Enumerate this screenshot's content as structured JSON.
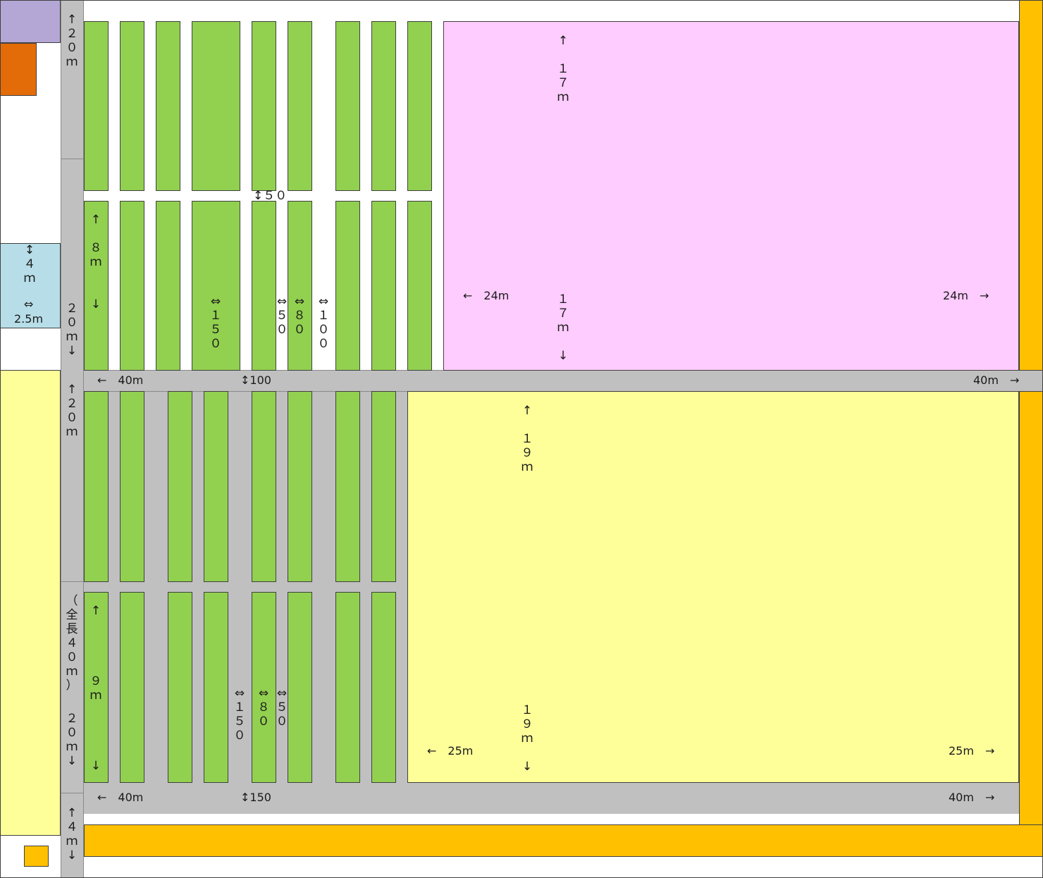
{
  "colors": {
    "bed": "#92d050",
    "aisle": "#c0c0c0",
    "pink_area": "#ffccff",
    "yellow_area": "#ffff99",
    "orange_strip": "#ffc000",
    "purple_block": "#b4a7d6",
    "dark_orange_block": "#e36c09",
    "light_blue_block": "#b7dee8"
  },
  "left_labels": {
    "upper_top": "↑\n２\n０\nｍ",
    "upper_bottom": "２\n０\nｍ\n↓",
    "lower_top": "↑\n２\n０\nｍ",
    "lower_total": "（\n全\n長\n４\n０\nｍ\n）",
    "lower_bottom": "２\n０\nｍ\n↓",
    "bottom_4m": "↑\n４\nｍ\n↓"
  },
  "blue_box": {
    "v_label": "↕\n４\nｍ",
    "h_arrow": "⇔",
    "h_value": "2.5m"
  },
  "upper_block": {
    "bed_height": "↑\n\n８\nｍ\n\n\n↓",
    "gap_150": "↕５０",
    "w150": "⇔\n１\n５\n０",
    "w50": "⇔\n５\n０",
    "w80": "⇔\n８\n０",
    "w100": "⇔\n１\n０\n０"
  },
  "pink_area": {
    "top": "↑\n\n１\n７\nｍ",
    "bottom": "１\n７\nｍ\n\n↓",
    "left": "←　24m",
    "right": "24m　→"
  },
  "mid_aisle": {
    "left": "←　40m",
    "mid": "↕100",
    "right": "40m　→"
  },
  "lower_block": {
    "bed_height": "↑\n\n\n\n\n９\nｍ\n\n\n\n\n↓",
    "w150": "⇔\n１\n５\n０",
    "w80": "⇔\n８\n０",
    "w50": "⇔\n５\n０"
  },
  "yellow_area": {
    "top": "↑\n\n１\n９\nｍ",
    "bottom": "１\n９\nｍ\n\n↓",
    "left": "←　25m",
    "right": "25m　→"
  },
  "bottom_aisle": {
    "left": "←　40m",
    "mid": "↕150",
    "right": "40m　→"
  }
}
